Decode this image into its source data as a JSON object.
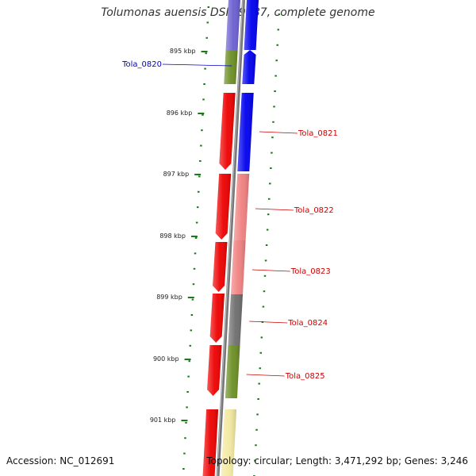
{
  "title": "Tolumonas auensis DSM 9187, complete genome",
  "accession": "Accession: NC_012691",
  "topology": "Topology: circular; Length: 3,471,292 bp; Genes: 3,246",
  "colors": {
    "backbone": "#777777",
    "tick": "#1a7a1a",
    "blue": "#0000ee",
    "periwinkle": "#6a5fd0",
    "olive": "#6b8e23",
    "red": "#ee0000",
    "pink": "#f08080",
    "gray": "#6e6e6e",
    "yellow": "#f3e9a0",
    "label_blue": "#0000cc",
    "label_red": "#cc0000"
  },
  "scale_ticks": [
    {
      "label": "895 kbp"
    },
    {
      "label": "896 kbp"
    },
    {
      "label": "897 kbp"
    },
    {
      "label": "898 kbp"
    },
    {
      "label": "899 kbp"
    },
    {
      "label": "900 kbp"
    },
    {
      "label": "901 kbp"
    }
  ],
  "genes": [
    {
      "name": "",
      "strand": "forward",
      "color": "blue"
    },
    {
      "name": "",
      "strand": "reverse",
      "color": "periwinkle"
    },
    {
      "name": "Tola_0820",
      "strand": "forward",
      "color": "blue"
    },
    {
      "name": "",
      "strand": "reverse",
      "color": "olive"
    },
    {
      "name": "",
      "strand": "reverse",
      "color": "red"
    },
    {
      "name": "Tola_0821",
      "strand": "forward",
      "color": "blue"
    },
    {
      "name": "",
      "strand": "reverse",
      "color": "red"
    },
    {
      "name": "Tola_0822",
      "strand": "forward",
      "color": "pink"
    },
    {
      "name": "",
      "strand": "reverse",
      "color": "red"
    },
    {
      "name": "Tola_0823",
      "strand": "forward",
      "color": "pink"
    },
    {
      "name": "",
      "strand": "reverse",
      "color": "red"
    },
    {
      "name": "Tola_0824",
      "strand": "forward",
      "color": "gray"
    },
    {
      "name": "",
      "strand": "reverse",
      "color": "red"
    },
    {
      "name": "Tola_0825",
      "strand": "forward",
      "color": "olive"
    },
    {
      "name": "",
      "strand": "reverse",
      "color": "red"
    },
    {
      "name": "",
      "strand": "forward",
      "color": "yellow"
    }
  ]
}
